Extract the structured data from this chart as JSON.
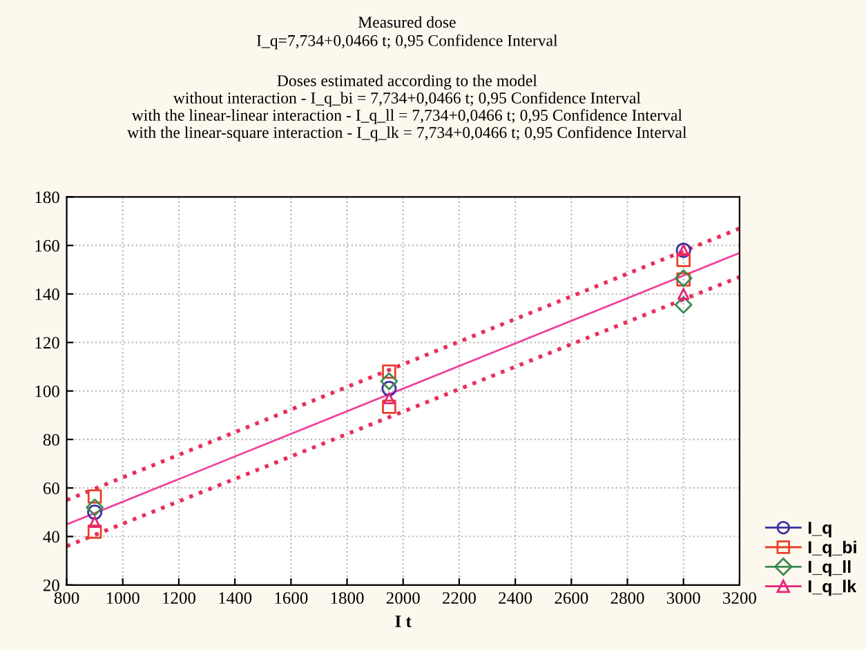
{
  "chart_data": {
    "type": "scatter",
    "title": "Measured dose\nI_q=7,734+0,0466 t; 0,95 Confidence Interval",
    "subtitle": "Doses estimated according to the model\nwithout interaction - I_q_bi = 7,734+0,0466 t; 0,95 Confidence Interval\nwith the linear-linear interaction - I_q_ll = 7,734+0,0466 t; 0,95 Confidence Interval\nwith the linear-square interaction - I_q_lk = 7,734+0,0466 t; 0,95 Confidence Interval",
    "xlabel": "I t",
    "xlim": [
      800,
      3200
    ],
    "xticks": [
      800,
      1000,
      1200,
      1400,
      1600,
      1800,
      2000,
      2200,
      2400,
      2600,
      2800,
      3000,
      3200
    ],
    "ylim": [
      20,
      180
    ],
    "yticks": [
      20,
      40,
      60,
      80,
      100,
      120,
      140,
      160,
      180
    ],
    "grid": true,
    "legend": "bottom right",
    "series": [
      {
        "name": "I_q",
        "color": "#3a2fa0",
        "marker": "circle",
        "x": [
          900,
          1950,
          3000
        ],
        "values": [
          50,
          101,
          158
        ]
      },
      {
        "name": "I_q_bi",
        "color": "#e8402a",
        "marker": "square",
        "x": [
          900,
          900,
          1950,
          1950,
          3000,
          3000
        ],
        "values": [
          56.5,
          42,
          108,
          93.5,
          154,
          146
        ]
      },
      {
        "name": "I_q_ll",
        "color": "#3a8a50",
        "marker": "diamond",
        "x": [
          900,
          1950,
          3000,
          3000
        ],
        "values": [
          52,
          104,
          146.5,
          135.5
        ]
      },
      {
        "name": "I_q_lk",
        "color": "#e8207a",
        "marker": "triangle",
        "x": [
          900,
          1950,
          3000,
          3000
        ],
        "values": [
          46,
          97,
          158,
          140
        ]
      },
      {
        "type": "line",
        "color": "#f0409a",
        "line_style": "solid",
        "x": [
          800,
          3200
        ],
        "values": [
          45.0,
          156.9
        ]
      },
      {
        "type": "line",
        "color": "#e8305a",
        "line_style": "dotted",
        "x": [
          800,
          3200
        ],
        "values": [
          55,
          167
        ]
      },
      {
        "type": "line",
        "color": "#e8305a",
        "line_style": "dotted",
        "x": [
          800,
          3200
        ],
        "values": [
          36,
          147
        ]
      }
    ]
  }
}
